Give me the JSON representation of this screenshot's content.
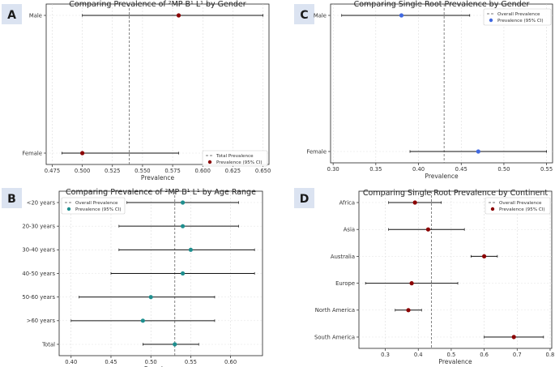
{
  "chart_data": [
    {
      "panel": "A",
      "type": "forest",
      "orientation": "horizontal",
      "title": "Comparing Prevalence of ²MP B¹ L¹ by Gender",
      "xlabel": "Prevalence",
      "ylabel": "",
      "xlim": [
        0.47,
        0.655
      ],
      "xticks": [
        0.475,
        0.5,
        0.525,
        0.55,
        0.575,
        0.6,
        0.625,
        0.65
      ],
      "xtick_labels": [
        "0.475",
        "0.500",
        "0.525",
        "0.550",
        "0.575",
        "0.600",
        "0.625",
        "0.650"
      ],
      "categories": [
        "Male",
        "Female"
      ],
      "series": [
        {
          "name": "Prevalence (95% CI)",
          "color": "#8b0000",
          "values": [
            0.58,
            0.5
          ],
          "ci_low": [
            0.5,
            0.483
          ],
          "ci_high": [
            0.65,
            0.58
          ]
        }
      ],
      "reference": {
        "name": "Total Prevalence",
        "value": 0.539
      },
      "legend": "lower-right",
      "grid": true
    },
    {
      "panel": "C",
      "type": "forest",
      "orientation": "horizontal",
      "title": "Comparing Single Root Prevalence by Gender",
      "xlabel": "Prevalence",
      "ylabel": "",
      "xlim": [
        0.297,
        0.557
      ],
      "xticks": [
        0.3,
        0.35,
        0.4,
        0.45,
        0.5,
        0.55
      ],
      "xtick_labels": [
        "0.30",
        "0.35",
        "0.40",
        "0.45",
        "0.50",
        "0.55"
      ],
      "categories": [
        "Male",
        "Female"
      ],
      "series": [
        {
          "name": "Prevalence (95% CI)",
          "color": "#4169e1",
          "values": [
            0.38,
            0.47
          ],
          "ci_low": [
            0.31,
            0.39
          ],
          "ci_high": [
            0.46,
            0.55
          ]
        }
      ],
      "reference": {
        "name": "Overall Prevalence",
        "value": 0.43
      },
      "legend": "upper-right",
      "grid": true
    },
    {
      "panel": "B",
      "type": "forest",
      "orientation": "horizontal",
      "title": "Comparing Prevalence of ²MP B¹ L¹ by Age Range",
      "xlabel": "Prevalence",
      "ylabel": "",
      "xlim": [
        0.385,
        0.64
      ],
      "xticks": [
        0.4,
        0.45,
        0.5,
        0.55,
        0.6
      ],
      "xtick_labels": [
        "0.40",
        "0.45",
        "0.50",
        "0.55",
        "0.60"
      ],
      "categories": [
        "<20 years",
        "20-30 years",
        "30-40 years",
        "40-50 years",
        "50-60 years",
        ">60 years",
        "Total"
      ],
      "series": [
        {
          "name": "Prevalence (95% CI)",
          "color": "#1f8f8f",
          "values": [
            0.54,
            0.54,
            0.55,
            0.54,
            0.5,
            0.49,
            0.53
          ],
          "ci_low": [
            0.47,
            0.46,
            0.46,
            0.45,
            0.41,
            0.4,
            0.49
          ],
          "ci_high": [
            0.61,
            0.61,
            0.63,
            0.63,
            0.58,
            0.58,
            0.56
          ]
        }
      ],
      "reference": {
        "name": "Overall Prevalence",
        "value": 0.53
      },
      "legend": "upper-left",
      "grid": true
    },
    {
      "panel": "D",
      "type": "forest",
      "orientation": "horizontal",
      "title": "Comparing Single Root Prevalence by Continent",
      "xlabel": "Prevalence",
      "ylabel": "",
      "xlim": [
        0.22,
        0.805
      ],
      "xticks": [
        0.3,
        0.4,
        0.5,
        0.6,
        0.7,
        0.8
      ],
      "xtick_labels": [
        "0.3",
        "0.4",
        "0.5",
        "0.6",
        "0.7",
        "0.8"
      ],
      "categories": [
        "Africa",
        "Asia",
        "Australia",
        "Europe",
        "North America",
        "South America"
      ],
      "series": [
        {
          "name": "Prevalence (95% CI)",
          "color": "#8b0000",
          "values": [
            0.39,
            0.43,
            0.6,
            0.38,
            0.37,
            0.69
          ],
          "ci_low": [
            0.31,
            0.31,
            0.56,
            0.24,
            0.33,
            0.6
          ],
          "ci_high": [
            0.47,
            0.54,
            0.64,
            0.52,
            0.41,
            0.78
          ]
        }
      ],
      "reference": {
        "name": "Overall Prevalence",
        "value": 0.44
      },
      "legend": "upper-right",
      "grid": true
    }
  ]
}
